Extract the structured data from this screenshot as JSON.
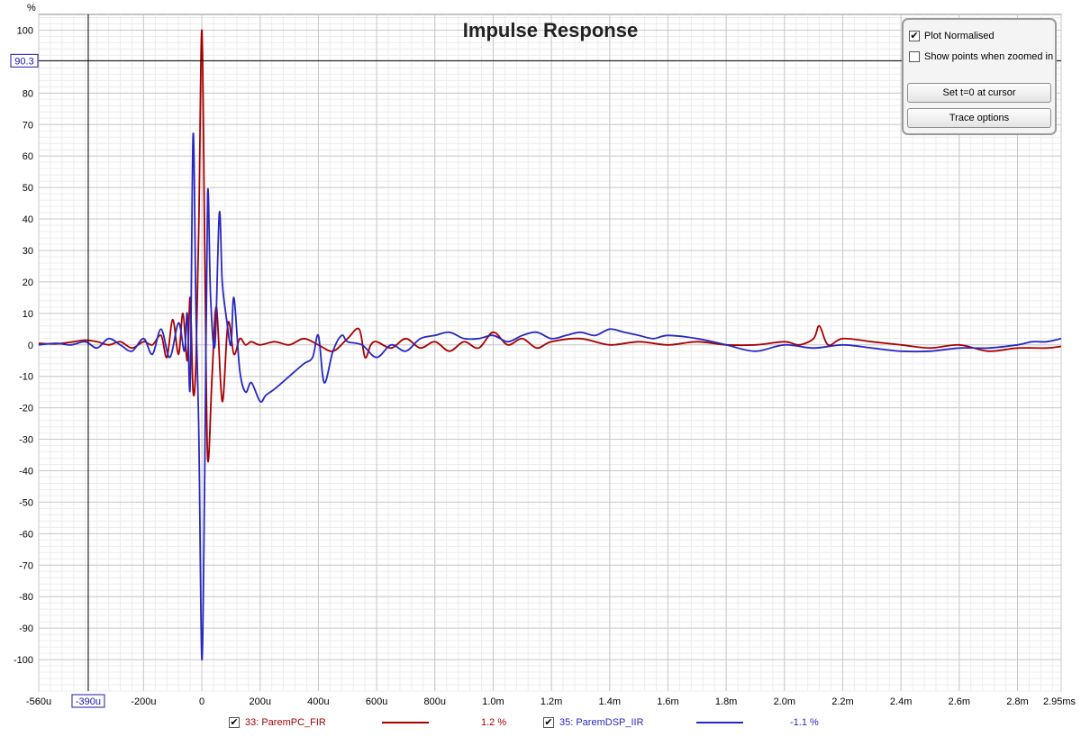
{
  "options": {
    "plot_normalised": {
      "label": "Plot Normalised",
      "checked": true
    },
    "show_points": {
      "label": "Show points when zoomed in",
      "checked": false
    },
    "set_t0_label": "Set t=0 at cursor",
    "trace_options_label": "Trace options"
  },
  "legend": [
    {
      "checked": true,
      "name": "33: ParemPC_FIR",
      "value": "1.2 %",
      "color": "#a80000"
    },
    {
      "checked": true,
      "name": "35: ParemDSP_IIR",
      "value": "-1.1 %",
      "color": "#2828c0"
    }
  ],
  "chart_data": {
    "type": "line",
    "title": "Impulse Response",
    "ylabel": "%",
    "xlim_ms": [
      -0.56,
      2.95
    ],
    "ylim": [
      -110,
      105
    ],
    "grid": true,
    "x_ticks": [
      -0.56,
      -0.2,
      0,
      0.2,
      0.4,
      0.6,
      0.8,
      1.0,
      1.2,
      1.4,
      1.6,
      1.8,
      2.0,
      2.2,
      2.4,
      2.6,
      2.8,
      2.95
    ],
    "x_tick_labels": [
      "-560u",
      "-200u",
      "0",
      "200u",
      "400u",
      "600u",
      "800u",
      "1.0m",
      "1.2m",
      "1.4m",
      "1.6m",
      "1.8m",
      "2.0m",
      "2.2m",
      "2.4m",
      "2.6m",
      "2.8m",
      "2.95ms"
    ],
    "y_ticks": [
      100,
      80,
      70,
      60,
      50,
      40,
      30,
      20,
      10,
      0,
      -10,
      -20,
      -30,
      -40,
      -50,
      -60,
      -70,
      -80,
      -90,
      -100
    ],
    "y_tick_labels": [
      "100",
      "80",
      "70",
      "60",
      "50",
      "40",
      "30",
      "20",
      "10",
      "0",
      "-10",
      "-20",
      "-30",
      "-40",
      "-50",
      "-60",
      "-70",
      "-80",
      "-90",
      "-100"
    ],
    "cursor": {
      "x_ms": -0.39,
      "x_label": "-390u",
      "y": 90.3,
      "y_label": "90.3"
    },
    "series": [
      {
        "name": "33: ParemPC_FIR",
        "color": "#a80000",
        "x": [
          -0.56,
          -0.5,
          -0.44,
          -0.4,
          -0.36,
          -0.32,
          -0.28,
          -0.24,
          -0.2,
          -0.17,
          -0.14,
          -0.12,
          -0.1,
          -0.08,
          -0.065,
          -0.05,
          -0.04,
          -0.03,
          -0.02,
          -0.01,
          0,
          0.01,
          0.02,
          0.035,
          0.05,
          0.07,
          0.09,
          0.11,
          0.13,
          0.15,
          0.17,
          0.2,
          0.25,
          0.3,
          0.35,
          0.4,
          0.45,
          0.5,
          0.54,
          0.56,
          0.58,
          0.6,
          0.65,
          0.7,
          0.75,
          0.8,
          0.85,
          0.9,
          0.95,
          1.0,
          1.05,
          1.1,
          1.15,
          1.2,
          1.3,
          1.4,
          1.5,
          1.6,
          1.7,
          1.8,
          1.9,
          2.0,
          2.05,
          2.1,
          2.12,
          2.15,
          2.2,
          2.3,
          2.4,
          2.5,
          2.6,
          2.7,
          2.8,
          2.9,
          2.95
        ],
        "y": [
          0.5,
          0.3,
          1,
          1.5,
          1,
          0,
          1,
          -1,
          1,
          0,
          3,
          -4,
          8,
          -3,
          10,
          -5,
          15,
          -15,
          -5,
          40,
          100,
          30,
          -36,
          -10,
          12,
          -18,
          7,
          -3,
          2,
          0,
          1,
          0,
          1,
          0,
          2,
          0,
          -2,
          2,
          5,
          -4,
          0,
          1,
          -1,
          2,
          -1,
          1,
          -2,
          1,
          -1,
          4,
          0,
          2,
          -1,
          1,
          2,
          0,
          1,
          0,
          1,
          0,
          0,
          1,
          0,
          2,
          6,
          0,
          2,
          1,
          0,
          -1,
          0,
          -2,
          -1,
          -1,
          -0.5
        ]
      },
      {
        "name": "35: ParemDSP_IIR",
        "color": "#2828c0",
        "x": [
          -0.56,
          -0.5,
          -0.45,
          -0.4,
          -0.36,
          -0.32,
          -0.28,
          -0.24,
          -0.2,
          -0.17,
          -0.14,
          -0.11,
          -0.08,
          -0.06,
          -0.05,
          -0.04,
          -0.03,
          -0.02,
          -0.01,
          0,
          0.01,
          0.02,
          0.03,
          0.045,
          0.06,
          0.07,
          0.085,
          0.1,
          0.11,
          0.13,
          0.15,
          0.17,
          0.2,
          0.22,
          0.25,
          0.3,
          0.35,
          0.38,
          0.4,
          0.42,
          0.45,
          0.48,
          0.5,
          0.55,
          0.6,
          0.65,
          0.7,
          0.75,
          0.8,
          0.85,
          0.9,
          0.95,
          1.0,
          1.05,
          1.1,
          1.15,
          1.2,
          1.25,
          1.3,
          1.35,
          1.4,
          1.45,
          1.5,
          1.55,
          1.6,
          1.7,
          1.8,
          1.9,
          2.0,
          2.1,
          2.2,
          2.3,
          2.4,
          2.5,
          2.6,
          2.7,
          2.8,
          2.85,
          2.9,
          2.95
        ],
        "y": [
          0,
          0.5,
          0,
          1,
          -1,
          2,
          0,
          -2,
          2,
          -3,
          5,
          -4,
          7,
          -2,
          10,
          -13,
          67,
          10,
          -30,
          -100,
          -40,
          48,
          15,
          0,
          42,
          20,
          8,
          0,
          15,
          -8,
          -15,
          -12,
          -18,
          -16,
          -14,
          -10,
          -6,
          -4,
          3,
          -12,
          -2,
          3,
          1,
          0,
          -4,
          0,
          -2,
          2,
          3,
          4,
          2,
          2,
          3,
          1,
          3,
          4,
          2,
          3,
          4,
          3,
          5,
          4,
          3,
          2,
          3,
          2,
          0,
          -2,
          0,
          -1,
          0,
          -1,
          -2,
          -2,
          -1,
          -1,
          0,
          1,
          1,
          2
        ]
      }
    ]
  }
}
